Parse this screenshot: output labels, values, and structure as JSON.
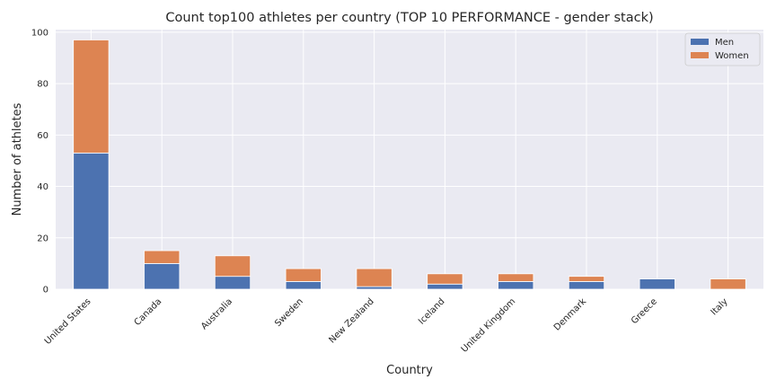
{
  "chart_data": {
    "type": "bar",
    "stacked": true,
    "title": "Count top100 athletes per country (TOP 10 PERFORMANCE - gender stack)",
    "xlabel": "Country",
    "ylabel": "Number of athletes",
    "ylim": [
      0,
      101
    ],
    "yticks": [
      0,
      20,
      40,
      60,
      80,
      100
    ],
    "grid": true,
    "legend_position": "top-right",
    "categories": [
      "United States",
      "Canada",
      "Australia",
      "Sweden",
      "New Zealand",
      "Iceland",
      "United Kingdom",
      "Denmark",
      "Greece",
      "Italy"
    ],
    "series": [
      {
        "name": "Men",
        "color": "#4c72b0",
        "values": [
          53,
          10,
          5,
          3,
          1,
          2,
          3,
          3,
          4,
          0
        ]
      },
      {
        "name": "Women",
        "color": "#dd8452",
        "values": [
          44,
          5,
          8,
          5,
          7,
          4,
          3,
          2,
          0,
          4
        ]
      }
    ],
    "colors": {
      "plot_background": "#eaeaf2",
      "grid": "#ffffff",
      "text": "#262626"
    }
  }
}
